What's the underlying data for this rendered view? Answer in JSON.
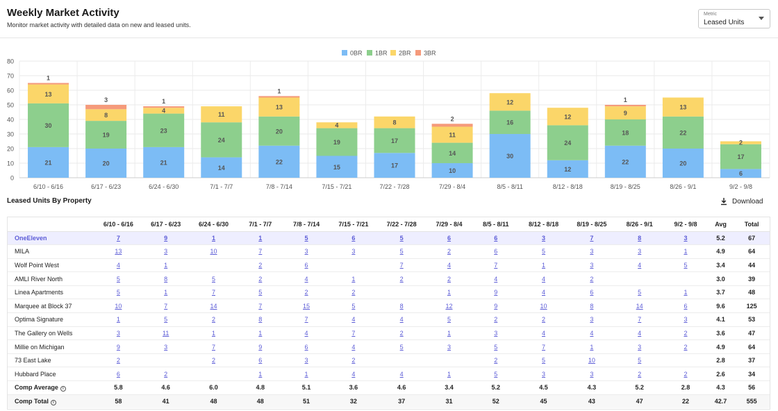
{
  "header": {
    "title": "Weekly Market Activity",
    "subtitle": "Monitor market activity with detailed data on new and leased units.",
    "metric_label": "Metric",
    "metric_value": "Leased Units"
  },
  "colors": {
    "0BR": "#7cbcf5",
    "1BR": "#8dcf8d",
    "2BR": "#fbd669",
    "3BR": "#f59a7b",
    "link": "#5b5bd6"
  },
  "chart_data": {
    "type": "bar",
    "stacked": true,
    "categories": [
      "6/10 - 6/16",
      "6/17 - 6/23",
      "6/24 - 6/30",
      "7/1 - 7/7",
      "7/8 - 7/14",
      "7/15 - 7/21",
      "7/22 - 7/28",
      "7/29 - 8/4",
      "8/5 - 8/11",
      "8/12 - 8/18",
      "8/19 - 8/25",
      "8/26 - 9/1",
      "9/2 - 9/8"
    ],
    "series": [
      {
        "name": "0BR",
        "values": [
          21,
          20,
          21,
          14,
          22,
          15,
          17,
          10,
          30,
          12,
          22,
          20,
          6
        ]
      },
      {
        "name": "1BR",
        "values": [
          30,
          19,
          23,
          24,
          20,
          19,
          17,
          14,
          16,
          24,
          18,
          22,
          17
        ]
      },
      {
        "name": "2BR",
        "values": [
          13,
          8,
          4,
          11,
          13,
          4,
          8,
          11,
          12,
          12,
          9,
          13,
          2
        ]
      },
      {
        "name": "3BR",
        "values": [
          1,
          3,
          1,
          0,
          1,
          0,
          0,
          2,
          0,
          0,
          1,
          0,
          0
        ]
      }
    ],
    "yticks": [
      "0",
      "10",
      "20",
      "30",
      "40",
      "50",
      "60",
      "70",
      "80"
    ],
    "ylim": [
      0,
      80
    ],
    "legend_position": "top-center",
    "grid": true
  },
  "table": {
    "title": "Leased Units By Property",
    "download_label": "Download",
    "columns": [
      "6/10 - 6/16",
      "6/17 - 6/23",
      "6/24 - 6/30",
      "7/1 - 7/7",
      "7/8 - 7/14",
      "7/15 - 7/21",
      "7/22 - 7/28",
      "7/29 - 8/4",
      "8/5 - 8/11",
      "8/12 - 8/18",
      "8/19 - 8/25",
      "8/26 - 9/1",
      "9/2 - 9/8",
      "Avg",
      "Total"
    ],
    "rows": [
      {
        "name": "OneEleven",
        "highlight": true,
        "values": [
          "7",
          "9",
          "1",
          "1",
          "5",
          "6",
          "5",
          "6",
          "6",
          "3",
          "7",
          "8",
          "3"
        ],
        "avg": "5.2",
        "total": "67"
      },
      {
        "name": "MILA",
        "values": [
          "13",
          "3",
          "10",
          "7",
          "3",
          "3",
          "5",
          "2",
          "6",
          "5",
          "3",
          "3",
          "1"
        ],
        "avg": "4.9",
        "total": "64"
      },
      {
        "name": "Wolf Point West",
        "values": [
          "4",
          "1",
          "",
          "2",
          "6",
          "",
          "7",
          "4",
          "7",
          "1",
          "3",
          "4",
          "5"
        ],
        "avg": "3.4",
        "total": "44"
      },
      {
        "name": "AMLI River North",
        "values": [
          "5",
          "8",
          "5",
          "2",
          "4",
          "1",
          "2",
          "2",
          "4",
          "4",
          "2",
          "",
          ""
        ],
        "avg": "3.0",
        "total": "39"
      },
      {
        "name": "Linea Apartments",
        "values": [
          "5",
          "1",
          "7",
          "5",
          "2",
          "2",
          "",
          "1",
          "9",
          "4",
          "6",
          "5",
          "1"
        ],
        "avg": "3.7",
        "total": "48"
      },
      {
        "name": "Marquee at Block 37",
        "values": [
          "10",
          "7",
          "14",
          "7",
          "15",
          "5",
          "8",
          "12",
          "9",
          "10",
          "8",
          "14",
          "6"
        ],
        "avg": "9.6",
        "total": "125"
      },
      {
        "name": "Optima Signature",
        "values": [
          "1",
          "5",
          "2",
          "8",
          "7",
          "4",
          "4",
          "5",
          "2",
          "2",
          "3",
          "7",
          "3"
        ],
        "avg": "4.1",
        "total": "53"
      },
      {
        "name": "The Gallery on Wells",
        "values": [
          "3",
          "11",
          "1",
          "1",
          "4",
          "7",
          "2",
          "1",
          "3",
          "4",
          "4",
          "4",
          "2"
        ],
        "avg": "3.6",
        "total": "47"
      },
      {
        "name": "Millie on Michigan",
        "values": [
          "9",
          "3",
          "7",
          "9",
          "6",
          "4",
          "5",
          "3",
          "5",
          "7",
          "1",
          "3",
          "2"
        ],
        "avg": "4.9",
        "total": "64"
      },
      {
        "name": "73 East Lake",
        "values": [
          "2",
          "",
          "2",
          "6",
          "3",
          "2",
          "",
          "",
          "2",
          "5",
          "10",
          "5",
          ""
        ],
        "avg": "2.8",
        "total": "37"
      },
      {
        "name": "Hubbard Place",
        "values": [
          "6",
          "2",
          "",
          "1",
          "1",
          "4",
          "4",
          "1",
          "5",
          "3",
          "3",
          "2",
          "2"
        ],
        "avg": "2.6",
        "total": "34"
      }
    ],
    "summary": [
      {
        "name": "Comp Average",
        "values": [
          "5.8",
          "4.6",
          "6.0",
          "4.8",
          "5.1",
          "3.6",
          "4.6",
          "3.4",
          "5.2",
          "4.5",
          "4.3",
          "5.2",
          "2.8"
        ],
        "avg": "4.3",
        "total": "56"
      },
      {
        "name": "Comp Total",
        "values": [
          "58",
          "41",
          "48",
          "48",
          "51",
          "32",
          "37",
          "31",
          "52",
          "45",
          "43",
          "47",
          "22"
        ],
        "avg": "42.7",
        "total": "555"
      }
    ]
  }
}
